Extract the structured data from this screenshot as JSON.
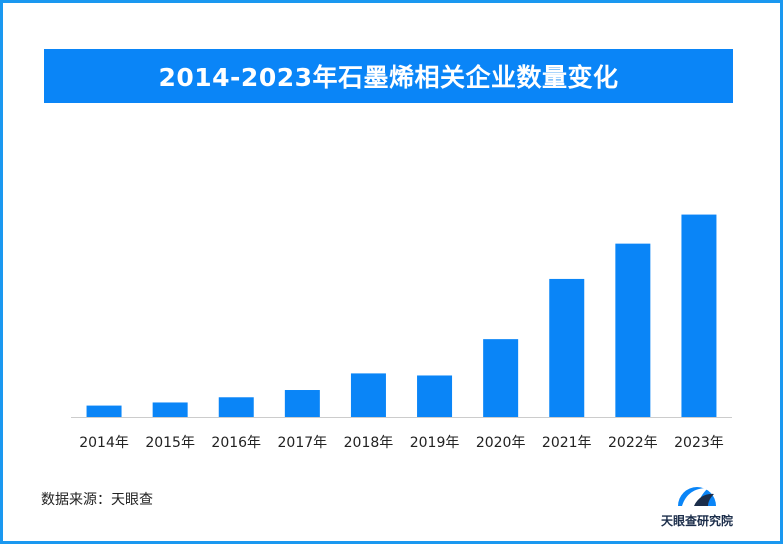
{
  "chart_data": {
    "type": "bar",
    "title": "2014-2023年石墨烯相关企业数量变化",
    "categories": [
      "2014年",
      "2015年",
      "2016年",
      "2017年",
      "2018年",
      "2019年",
      "2020年",
      "2021年",
      "2022年",
      "2023年"
    ],
    "values": [
      11,
      14,
      19,
      26,
      42,
      40,
      75,
      133,
      167,
      195
    ],
    "ylim": [
      0,
      210
    ],
    "grid": false,
    "bar_color": "#0a85f7",
    "axis_color": "#cccccc"
  },
  "source": "数据来源：天眼查",
  "logo": {
    "icon": "tianyancha-logo-icon",
    "text": "天眼查研究院",
    "colors": [
      "#0a85f7",
      "#1b2d4a"
    ]
  },
  "colors": {
    "frame": "#1a98f0",
    "title_bg": "#0a85f7",
    "title_text": "#ffffff"
  }
}
